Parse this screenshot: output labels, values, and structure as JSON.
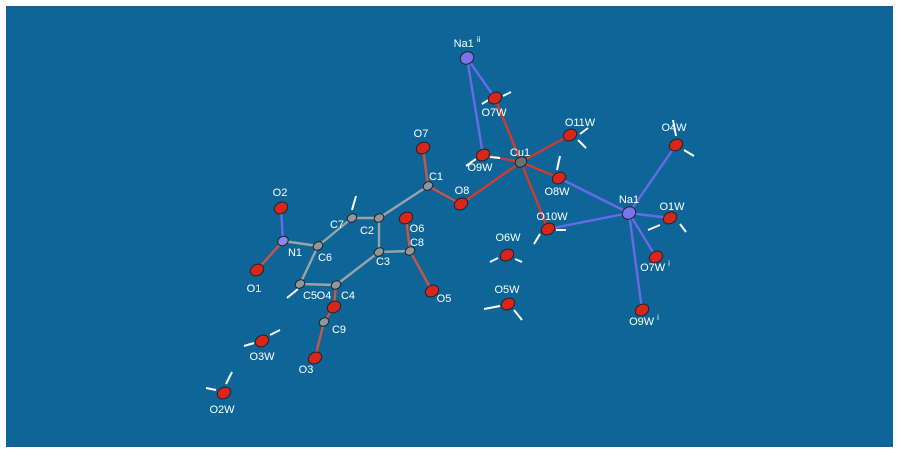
{
  "nodes": [
    {
      "label": "Na1",
      "sup": "ii"
    },
    {
      "label": "O7W"
    },
    {
      "label": "O11W"
    },
    {
      "label": "O4W"
    },
    {
      "label": "O7"
    },
    {
      "label": "O9W"
    },
    {
      "label": "Cu1"
    },
    {
      "label": "C1"
    },
    {
      "label": "O8"
    },
    {
      "label": "O8W"
    },
    {
      "label": "Na1"
    },
    {
      "label": "O1W"
    },
    {
      "label": "O2"
    },
    {
      "label": "C7"
    },
    {
      "label": "C2"
    },
    {
      "label": "O6"
    },
    {
      "label": "C8"
    },
    {
      "label": "O10W"
    },
    {
      "label": "N1"
    },
    {
      "label": "C6"
    },
    {
      "label": "C3"
    },
    {
      "label": "O6W"
    },
    {
      "label": "O7W",
      "sup": "i"
    },
    {
      "label": "O1"
    },
    {
      "label": "C5"
    },
    {
      "label": "C4"
    },
    {
      "label": "O4"
    },
    {
      "label": "O5"
    },
    {
      "label": "O5W"
    },
    {
      "label": "O9W",
      "sup": "i"
    },
    {
      "label": "C9"
    },
    {
      "label": "O3W"
    },
    {
      "label": "O3"
    },
    {
      "label": "O2W"
    }
  ]
}
